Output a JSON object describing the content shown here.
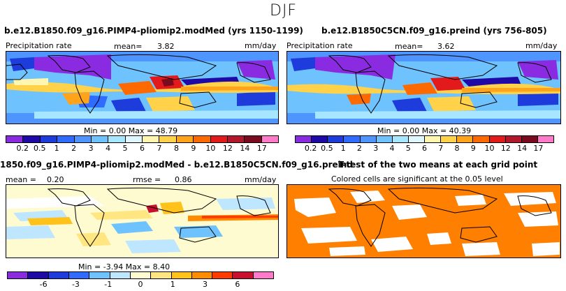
{
  "page_title": "DJF",
  "panels": {
    "test": {
      "title": "b.e12.B1850.f09_g16.PIMP4-pliomip2.modMed (yrs 1150-1199)",
      "variable": "Precipitation rate",
      "mean_label": "mean=",
      "mean_value": "3.82",
      "units": "mm/day",
      "minmax": "Min =     0.00 Max =    48.79"
    },
    "control": {
      "title": "b.e12.B1850C5CN.f09_g16.preind (yrs 756-805)",
      "variable": "Precipitation rate",
      "mean_label": "mean=",
      "mean_value": "3.62",
      "units": "mm/day",
      "minmax": "Min =     0.00 Max =    40.39"
    },
    "diff": {
      "title": "1850.f09_g16.PIMP4-pliomip2.modMed - b.e12.B1850C5CN.f09_g16.preind",
      "mean_label": "mean =",
      "mean_value": "0.20",
      "rmse_label": "rmse =",
      "rmse_value": "0.86",
      "units": "mm/day",
      "minmax": "Min =   -3.94 Max =     8.40"
    },
    "ttest": {
      "title": "T-test of the two means at each grid point",
      "subtitle": "Colored cells are significant at the 0.05 level"
    }
  },
  "chart_data": [
    {
      "type": "heatmap",
      "title": "b.e12.B1850.f09_g16.PIMP4-pliomip2.modMed (yrs 1150-1199)",
      "variable": "Precipitation rate",
      "units": "mm/day",
      "mean": 3.82,
      "min": 0.0,
      "max": 48.79,
      "colorbar_levels": [
        "0.2",
        "0.5",
        "1",
        "2",
        "3",
        "4",
        "5",
        "6",
        "7",
        "8",
        "9",
        "10",
        "12",
        "14",
        "17"
      ],
      "colorbar_colors": [
        "#8a2be2",
        "#1f0aa8",
        "#1e3bdc",
        "#2f6bff",
        "#4f95ff",
        "#6ec3ff",
        "#a6e6ff",
        "#dff7ff",
        "#fff6b0",
        "#ffd24a",
        "#ffa31a",
        "#ff6a00",
        "#e31a1c",
        "#b2182b",
        "#7a0a1e",
        "#ff7ac8"
      ]
    },
    {
      "type": "heatmap",
      "title": "b.e12.B1850C5CN.f09_g16.preind (yrs 756-805)",
      "variable": "Precipitation rate",
      "units": "mm/day",
      "mean": 3.62,
      "min": 0.0,
      "max": 40.39,
      "colorbar_levels": [
        "0.2",
        "0.5",
        "1",
        "2",
        "3",
        "4",
        "5",
        "6",
        "7",
        "8",
        "9",
        "10",
        "12",
        "14",
        "17"
      ],
      "colorbar_colors": [
        "#8a2be2",
        "#1f0aa8",
        "#1e3bdc",
        "#2f6bff",
        "#4f95ff",
        "#6ec3ff",
        "#a6e6ff",
        "#dff7ff",
        "#fff6b0",
        "#ffd24a",
        "#ffa31a",
        "#ff6a00",
        "#e31a1c",
        "#b2182b",
        "#7a0a1e",
        "#ff7ac8"
      ]
    },
    {
      "type": "heatmap",
      "title": "1850.f09_g16.PIMP4-pliomip2.modMed - b.e12.B1850C5CN.f09_g16.preind",
      "units": "mm/day",
      "mean": 0.2,
      "rmse": 0.86,
      "min": -3.94,
      "max": 8.4,
      "colorbar_ticks": [
        "-6",
        "-3",
        "-1",
        "0",
        "1",
        "3",
        "6"
      ],
      "colorbar_colors": [
        "#8a2be2",
        "#1f0aa8",
        "#1e3bdc",
        "#2f6bff",
        "#6ec3ff",
        "#bfe6ff",
        "#fffbd0",
        "#ffe680",
        "#ffc21a",
        "#ff8c00",
        "#ff3b00",
        "#c8102e",
        "#ff7ac8"
      ]
    },
    {
      "type": "heatmap",
      "title": "T-test of the two means at each grid point",
      "subtitle": "Colored cells are significant at the 0.05 level",
      "significant_color": "#ff7f00"
    }
  ]
}
